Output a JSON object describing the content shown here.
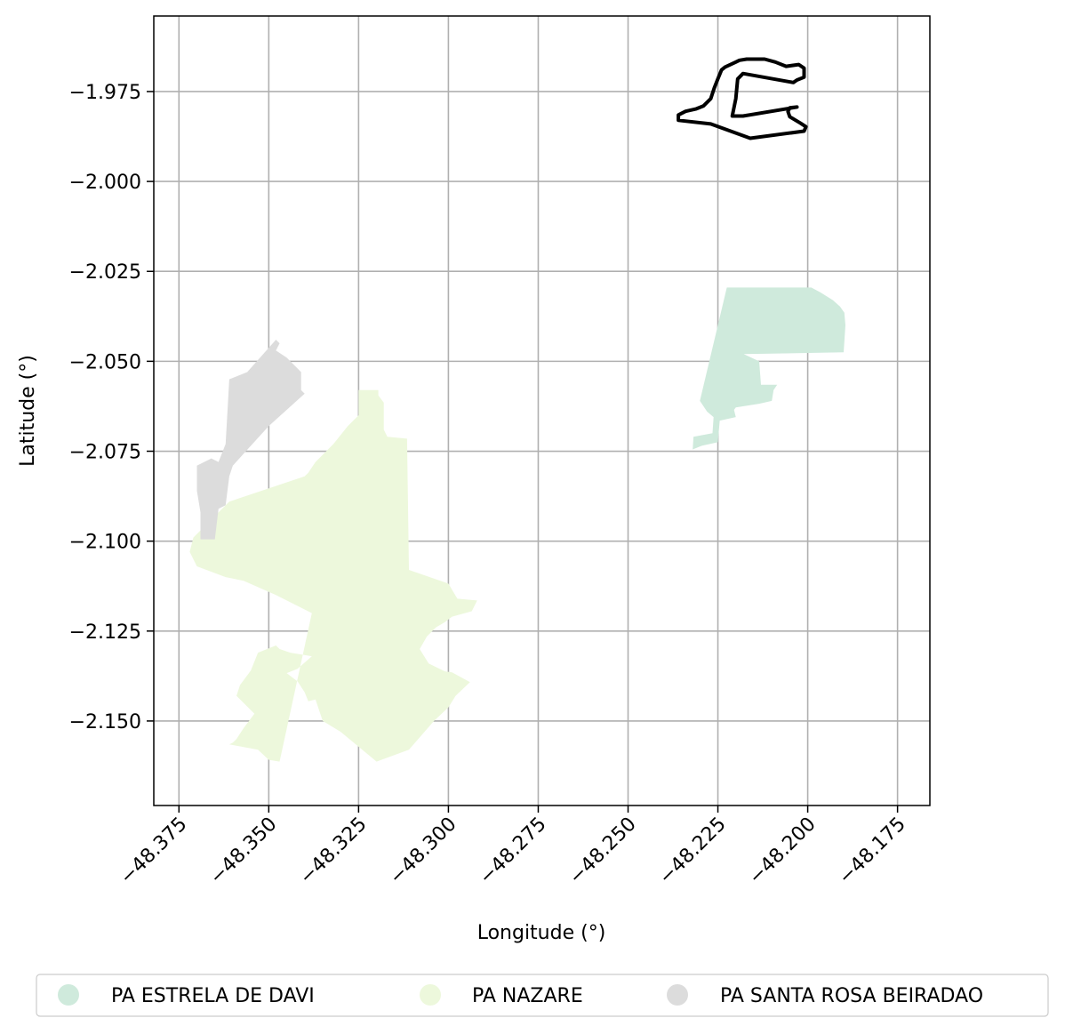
{
  "chart_data": {
    "type": "map",
    "xlabel": "Longitude (°)",
    "ylabel": "Latitude (°)",
    "xlim": [
      -48.382,
      -48.166
    ],
    "ylim": [
      -2.1735,
      -1.954
    ],
    "grid": true,
    "xticks": [
      -48.375,
      -48.35,
      -48.325,
      -48.3,
      -48.275,
      -48.25,
      -48.225,
      -48.2,
      -48.175
    ],
    "xtick_labels": [
      "−48.375",
      "−48.350",
      "−48.325",
      "−48.300",
      "−48.275",
      "−48.250",
      "−48.225",
      "−48.200",
      "−48.175"
    ],
    "yticks": [
      -1.975,
      -2.0,
      -2.025,
      -2.05,
      -2.075,
      -2.1,
      -2.125,
      -2.15
    ],
    "ytick_labels": [
      "−1.975",
      "−2.000",
      "−2.025",
      "−2.050",
      "−2.075",
      "−2.100",
      "−2.125",
      "−2.150"
    ],
    "legend_position": "bottom-center",
    "regions": [
      {
        "name": "PA ESTRELA DE DAVI",
        "color": "#cfeadc",
        "coords": [
          [
            -48.2225,
            -2.0295
          ],
          [
            -48.199,
            -2.0295
          ],
          [
            -48.1965,
            -2.0308
          ],
          [
            -48.193,
            -2.033
          ],
          [
            -48.191,
            -2.0348
          ],
          [
            -48.1898,
            -2.0365
          ],
          [
            -48.1895,
            -2.04
          ],
          [
            -48.19,
            -2.0475
          ],
          [
            -48.2178,
            -2.048
          ],
          [
            -48.2135,
            -2.05
          ],
          [
            -48.213,
            -2.0565
          ],
          [
            -48.2085,
            -2.0565
          ],
          [
            -48.2095,
            -2.058
          ],
          [
            -48.21,
            -2.061
          ],
          [
            -48.2135,
            -2.0618
          ],
          [
            -48.22,
            -2.0628
          ],
          [
            -48.2205,
            -2.0635
          ],
          [
            -48.22,
            -2.0655
          ],
          [
            -48.2245,
            -2.0665
          ],
          [
            -48.225,
            -2.0725
          ],
          [
            -48.2295,
            -2.0735
          ],
          [
            -48.232,
            -2.0745
          ],
          [
            -48.2318,
            -2.071
          ],
          [
            -48.2265,
            -2.07
          ],
          [
            -48.2262,
            -2.0655
          ],
          [
            -48.228,
            -2.064
          ],
          [
            -48.23,
            -2.061
          ]
        ]
      },
      {
        "name": "PA NAZARE",
        "color": "#edf8dc",
        "coords": [
          [
            -48.325,
            -2.058
          ],
          [
            -48.3195,
            -2.058
          ],
          [
            -48.3195,
            -2.0595
          ],
          [
            -48.318,
            -2.0615
          ],
          [
            -48.318,
            -2.069
          ],
          [
            -48.317,
            -2.071
          ],
          [
            -48.3115,
            -2.0715
          ],
          [
            -48.311,
            -2.108
          ],
          [
            -48.3,
            -2.1118
          ],
          [
            -48.2975,
            -2.116
          ],
          [
            -48.292,
            -2.1165
          ],
          [
            -48.2935,
            -2.1195
          ],
          [
            -48.299,
            -2.121
          ],
          [
            -48.301,
            -2.1225
          ],
          [
            -48.3035,
            -2.124
          ],
          [
            -48.306,
            -2.1265
          ],
          [
            -48.308,
            -2.13
          ],
          [
            -48.3055,
            -2.134
          ],
          [
            -48.301,
            -2.1362
          ],
          [
            -48.299,
            -2.1365
          ],
          [
            -48.294,
            -2.1392
          ],
          [
            -48.298,
            -2.143
          ],
          [
            -48.3,
            -2.1462
          ],
          [
            -48.304,
            -2.15
          ],
          [
            -48.311,
            -2.158
          ],
          [
            -48.32,
            -2.1613
          ],
          [
            -48.33,
            -2.153
          ],
          [
            -48.335,
            -2.15
          ],
          [
            -48.337,
            -2.144
          ],
          [
            -48.339,
            -2.1445
          ],
          [
            -48.34,
            -2.142
          ],
          [
            -48.342,
            -2.139
          ],
          [
            -48.345,
            -2.1367
          ],
          [
            -48.342,
            -2.1355
          ],
          [
            -48.338,
            -2.132
          ],
          [
            -48.344,
            -2.131
          ],
          [
            -48.347,
            -2.13
          ],
          [
            -48.348,
            -2.129
          ],
          [
            -48.353,
            -2.131
          ],
          [
            -48.355,
            -2.136
          ],
          [
            -48.358,
            -2.14
          ],
          [
            -48.359,
            -2.143
          ],
          [
            -48.354,
            -2.148
          ],
          [
            -48.357,
            -2.152
          ],
          [
            -48.359,
            -2.155
          ],
          [
            -48.36,
            -2.156
          ],
          [
            -48.361,
            -2.1565
          ],
          [
            -48.353,
            -2.158
          ],
          [
            -48.35,
            -2.1608
          ],
          [
            -48.347,
            -2.1613
          ],
          [
            -48.338,
            -2.12
          ],
          [
            -48.348,
            -2.115
          ],
          [
            -48.357,
            -2.111
          ],
          [
            -48.362,
            -2.11
          ],
          [
            -48.37,
            -2.107
          ],
          [
            -48.372,
            -2.103
          ],
          [
            -48.371,
            -2.099
          ],
          [
            -48.363,
            -2.091
          ],
          [
            -48.361,
            -2.089
          ],
          [
            -48.358,
            -2.088
          ],
          [
            -48.34,
            -2.082
          ],
          [
            -48.339,
            -2.081
          ],
          [
            -48.337,
            -2.078
          ],
          [
            -48.332,
            -2.073
          ],
          [
            -48.328,
            -2.068
          ],
          [
            -48.325,
            -2.065
          ]
        ]
      },
      {
        "name": "PA SANTA ROSA BEIRADAO",
        "color": "#dcdcdc",
        "coords": [
          [
            -48.348,
            -2.044
          ],
          [
            -48.347,
            -2.045
          ],
          [
            -48.348,
            -2.047
          ],
          [
            -48.345,
            -2.049
          ],
          [
            -48.341,
            -2.053
          ],
          [
            -48.341,
            -2.058
          ],
          [
            -48.34,
            -2.059
          ],
          [
            -48.35,
            -2.068
          ],
          [
            -48.36,
            -2.079
          ],
          [
            -48.361,
            -2.082
          ],
          [
            -48.362,
            -2.09
          ],
          [
            -48.364,
            -2.091
          ],
          [
            -48.365,
            -2.0995
          ],
          [
            -48.369,
            -2.0995
          ],
          [
            -48.369,
            -2.092
          ],
          [
            -48.37,
            -2.086
          ],
          [
            -48.37,
            -2.079
          ],
          [
            -48.366,
            -2.077
          ],
          [
            -48.364,
            -2.078
          ],
          [
            -48.362,
            -2.073
          ],
          [
            -48.361,
            -2.055
          ],
          [
            -48.356,
            -2.053
          ]
        ]
      }
    ],
    "outline": {
      "color": "#000000",
      "coords": [
        [
          -48.227,
          -1.984
        ],
        [
          -48.216,
          -1.988
        ],
        [
          -48.201,
          -1.986
        ],
        [
          -48.2005,
          -1.9848
        ],
        [
          -48.202,
          -1.9838
        ],
        [
          -48.205,
          -1.982
        ],
        [
          -48.2055,
          -1.9806
        ],
        [
          -48.205,
          -1.9795
        ],
        [
          -48.203,
          -1.9793
        ],
        [
          -48.218,
          -1.9818
        ],
        [
          -48.221,
          -1.9818
        ],
        [
          -48.22,
          -1.977
        ],
        [
          -48.2195,
          -1.9715
        ],
        [
          -48.218,
          -1.97
        ],
        [
          -48.204,
          -1.9725
        ],
        [
          -48.203,
          -1.9718
        ],
        [
          -48.201,
          -1.971
        ],
        [
          -48.201,
          -1.9685
        ],
        [
          -48.2025,
          -1.9675
        ],
        [
          -48.206,
          -1.968
        ],
        [
          -48.209,
          -1.9668
        ],
        [
          -48.212,
          -1.966
        ],
        [
          -48.214,
          -1.966
        ],
        [
          -48.217,
          -1.966
        ],
        [
          -48.219,
          -1.9663
        ],
        [
          -48.22,
          -1.9668
        ],
        [
          -48.223,
          -1.9682
        ],
        [
          -48.224,
          -1.969
        ],
        [
          -48.225,
          -1.9715
        ],
        [
          -48.226,
          -1.974
        ],
        [
          -48.227,
          -1.977
        ],
        [
          -48.229,
          -1.979
        ],
        [
          -48.231,
          -1.9798
        ],
        [
          -48.234,
          -1.9805
        ],
        [
          -48.236,
          -1.9815
        ],
        [
          -48.236,
          -1.983
        ]
      ]
    }
  }
}
